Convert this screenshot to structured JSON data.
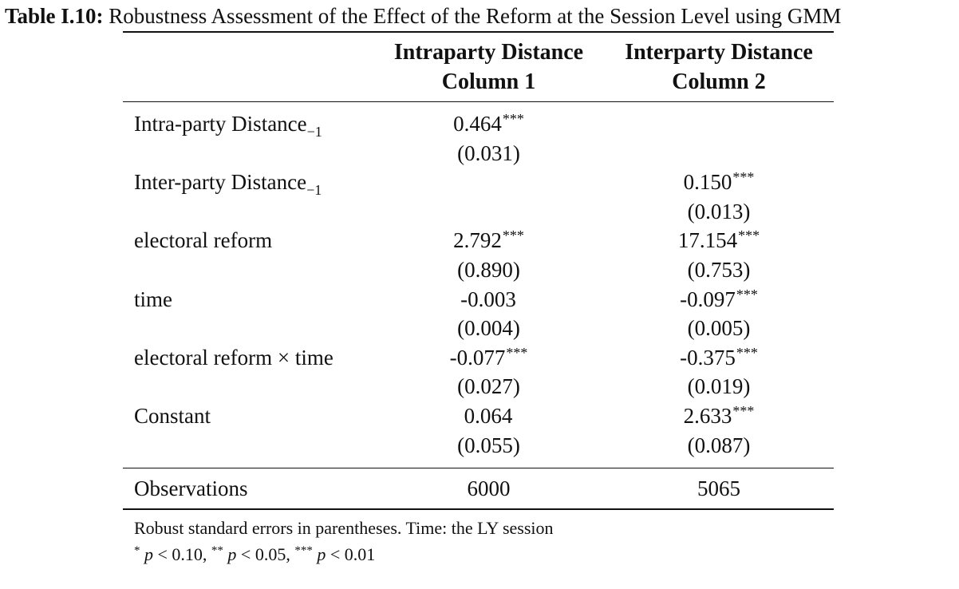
{
  "caption": {
    "label": "Table I.10:",
    "text": "Robustness Assessment of the Effect of the Reform at the Session Level using GMM"
  },
  "columns": [
    {
      "name": "Intraparty Distance",
      "number": "Column 1"
    },
    {
      "name": "Interparty Distance",
      "number": "Column 2"
    }
  ],
  "rows": [
    {
      "label": "Intra-party Distance",
      "subscript": "−1",
      "c1": {
        "coef": "0.464",
        "stars": "***",
        "se": "(0.031)"
      },
      "c2": {
        "coef": "",
        "stars": "",
        "se": ""
      }
    },
    {
      "label": "Inter-party Distance",
      "subscript": "−1",
      "c1": {
        "coef": "",
        "stars": "",
        "se": ""
      },
      "c2": {
        "coef": "0.150",
        "stars": "***",
        "se": "(0.013)"
      }
    },
    {
      "label": "electoral reform",
      "subscript": "",
      "c1": {
        "coef": "2.792",
        "stars": "***",
        "se": "(0.890)"
      },
      "c2": {
        "coef": "17.154",
        "stars": "***",
        "se": "(0.753)"
      }
    },
    {
      "label": "time",
      "subscript": "",
      "c1": {
        "coef": "-0.003",
        "stars": "",
        "se": "(0.004)"
      },
      "c2": {
        "coef": "-0.097",
        "stars": "***",
        "se": "(0.005)"
      }
    },
    {
      "label": "electoral reform × time",
      "subscript": "",
      "c1": {
        "coef": "-0.077",
        "stars": "***",
        "se": "(0.027)"
      },
      "c2": {
        "coef": "-0.375",
        "stars": "***",
        "se": "(0.019)"
      }
    },
    {
      "label": "Constant",
      "subscript": "",
      "c1": {
        "coef": "0.064",
        "stars": "",
        "se": "(0.055)"
      },
      "c2": {
        "coef": "2.633",
        "stars": "***",
        "se": "(0.087)"
      }
    }
  ],
  "observations": {
    "label": "Observations",
    "c1": "6000",
    "c2": "5065"
  },
  "notes": {
    "line1": "Robust standard errors in parentheses. Time: the LY session",
    "p_var": "p",
    "sig": [
      {
        "stars": "*",
        "threshold": "< 0.10"
      },
      {
        "stars": "**",
        "threshold": "< 0.05"
      },
      {
        "stars": "***",
        "threshold": "< 0.01"
      }
    ]
  }
}
